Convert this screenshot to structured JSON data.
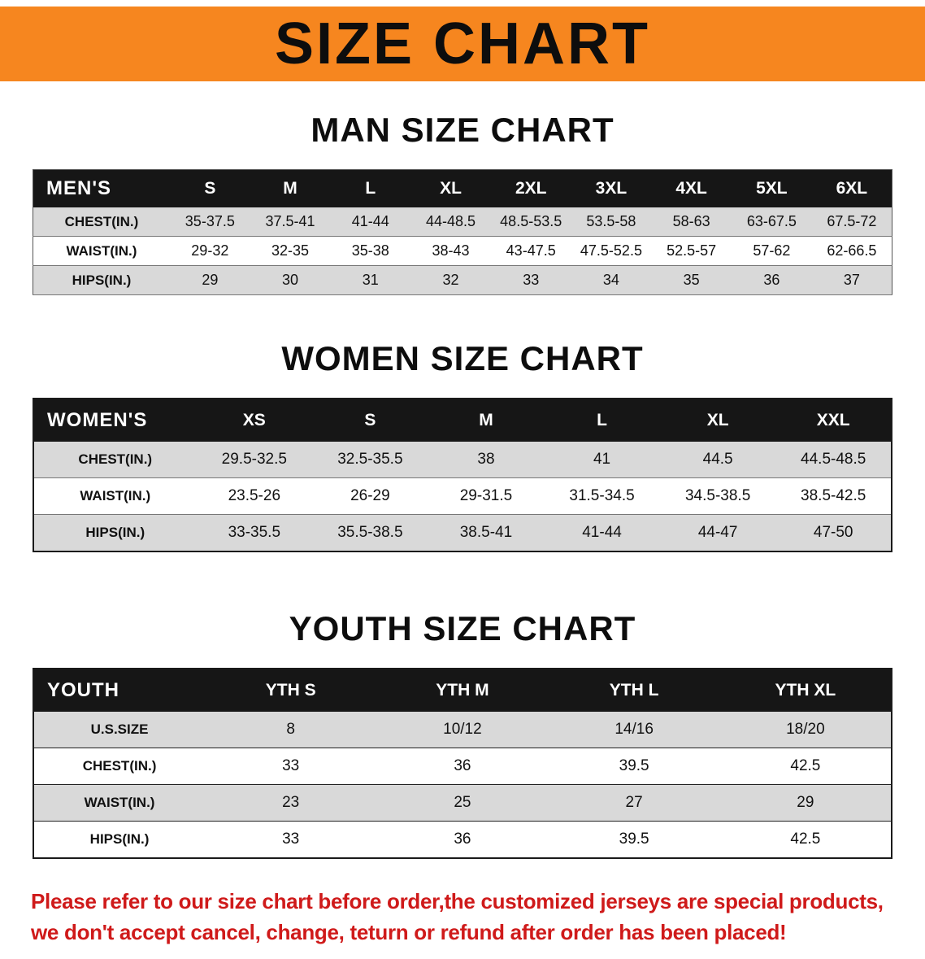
{
  "banner": {
    "title": "SIZE CHART",
    "background_color": "#f6861f",
    "text_color": "#0d0d0d"
  },
  "colors": {
    "table_header_bg": "#161616",
    "table_header_text": "#ffffff",
    "row_stripe": "#d9d9d9",
    "disclaimer_red": "#cf1a1a"
  },
  "sections": [
    {
      "heading": "MAN SIZE CHART",
      "table": {
        "header": [
          "MEN'S",
          "S",
          "M",
          "L",
          "XL",
          "2XL",
          "3XL",
          "4XL",
          "5XL",
          "6XL"
        ],
        "rows": [
          [
            "CHEST(IN.)",
            "35-37.5",
            "37.5-41",
            "41-44",
            "44-48.5",
            "48.5-53.5",
            "53.5-58",
            "58-63",
            "63-67.5",
            "67.5-72"
          ],
          [
            "WAIST(IN.)",
            "29-32",
            "32-35",
            "35-38",
            "38-43",
            "43-47.5",
            "47.5-52.5",
            "52.5-57",
            "57-62",
            "62-66.5"
          ],
          [
            "HIPS(IN.)",
            "29",
            "30",
            "31",
            "32",
            "33",
            "34",
            "35",
            "36",
            "37"
          ]
        ]
      }
    },
    {
      "heading": "WOMEN SIZE CHART",
      "table": {
        "header": [
          "WOMEN'S",
          "XS",
          "S",
          "M",
          "L",
          "XL",
          "XXL"
        ],
        "rows": [
          [
            "CHEST(IN.)",
            "29.5-32.5",
            "32.5-35.5",
            "38",
            "41",
            "44.5",
            "44.5-48.5"
          ],
          [
            "WAIST(IN.)",
            "23.5-26",
            "26-29",
            "29-31.5",
            "31.5-34.5",
            "34.5-38.5",
            "38.5-42.5"
          ],
          [
            "HIPS(IN.)",
            "33-35.5",
            "35.5-38.5",
            "38.5-41",
            "41-44",
            "44-47",
            "47-50"
          ]
        ]
      }
    },
    {
      "heading": "YOUTH SIZE CHART",
      "table": {
        "header": [
          "YOUTH",
          "YTH S",
          "YTH M",
          "YTH L",
          "YTH XL"
        ],
        "rows": [
          [
            "U.S.SIZE",
            "8",
            "10/12",
            "14/16",
            "18/20"
          ],
          [
            "CHEST(IN.)",
            "33",
            "36",
            "39.5",
            "42.5"
          ],
          [
            "WAIST(IN.)",
            "23",
            "25",
            "27",
            "29"
          ],
          [
            "HIPS(IN.)",
            "33",
            "36",
            "39.5",
            "42.5"
          ]
        ]
      }
    }
  ],
  "disclaimer": {
    "lines": [
      "Please refer to our size chart before order,the customized jerseys are special products,",
      "we don't accept cancel, change, teturn or refund after order has been placed!"
    ]
  }
}
